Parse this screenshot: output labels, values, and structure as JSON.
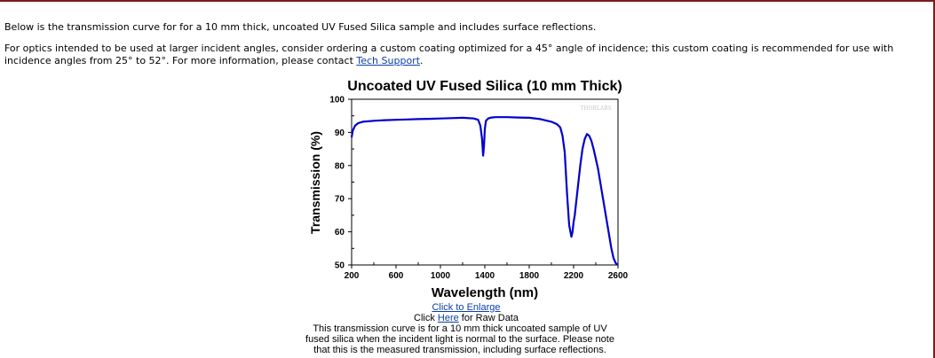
{
  "intro": {
    "line1": "Below is the transmission curve for for a 10 mm thick, uncoated UV Fused Silica sample and includes surface reflections.",
    "line2_before": "For optics intended to be used at larger incident angles, consider ordering a custom coating optimized for a 45° angle of incidence; this custom coating is recommended for use with incidence angles from 25° to 52°. For more information, please contact ",
    "link_tech_support": "Tech Support",
    "line2_after": "."
  },
  "caption": {
    "enlarge_link": "Click to Enlarge",
    "raw_prefix": "Click ",
    "raw_link": "Here",
    "raw_suffix": " for Raw Data",
    "description": "This transmission curve is for a 10 mm thick uncoated sample of UV fused silica when the incident light is normal to the surface. Please note that this is the measured transmission, including surface reflections."
  },
  "chart_data": {
    "type": "line",
    "title": "Uncoated UV Fused Silica (10 mm Thick)",
    "xlabel": "Wavelength (nm)",
    "ylabel": "Transmission (%)",
    "xlim": [
      200,
      2600
    ],
    "ylim": [
      50,
      100
    ],
    "xticks": [
      200,
      600,
      1000,
      1400,
      1800,
      2200,
      2600
    ],
    "yticks": [
      50,
      60,
      70,
      80,
      90,
      100
    ],
    "watermark": "THORLABS",
    "line_color": "#0000cc",
    "series": [
      {
        "x": [
          200,
          210,
          230,
          260,
          300,
          400,
          500,
          600,
          700,
          800,
          900,
          1000,
          1100,
          1200,
          1300,
          1340,
          1360,
          1375,
          1385,
          1393,
          1400,
          1410,
          1430,
          1460,
          1500,
          1600,
          1700,
          1800,
          1900,
          1950,
          2000,
          2050,
          2080,
          2100,
          2120,
          2140,
          2160,
          2180,
          2190,
          2200,
          2210,
          2220,
          2240,
          2260,
          2280,
          2300,
          2320,
          2340,
          2360,
          2380,
          2400,
          2420,
          2440,
          2460,
          2480,
          2500,
          2520,
          2540,
          2560,
          2580,
          2600
        ],
        "y": [
          88.5,
          90.5,
          92,
          92.8,
          93.2,
          93.5,
          93.7,
          93.8,
          93.9,
          94,
          94.1,
          94.2,
          94.3,
          94.4,
          94.2,
          93.8,
          92,
          88,
          83,
          86,
          91,
          93.5,
          94.2,
          94.5,
          94.6,
          94.6,
          94.5,
          94.4,
          94,
          93.6,
          93.2,
          92.5,
          91.5,
          89,
          84,
          72,
          62,
          58.5,
          60,
          63,
          65,
          68,
          74,
          80,
          85,
          88,
          89.5,
          89,
          87.5,
          85,
          82,
          79,
          75,
          71,
          67,
          63,
          59,
          55,
          52,
          50.5,
          50
        ]
      }
    ]
  }
}
